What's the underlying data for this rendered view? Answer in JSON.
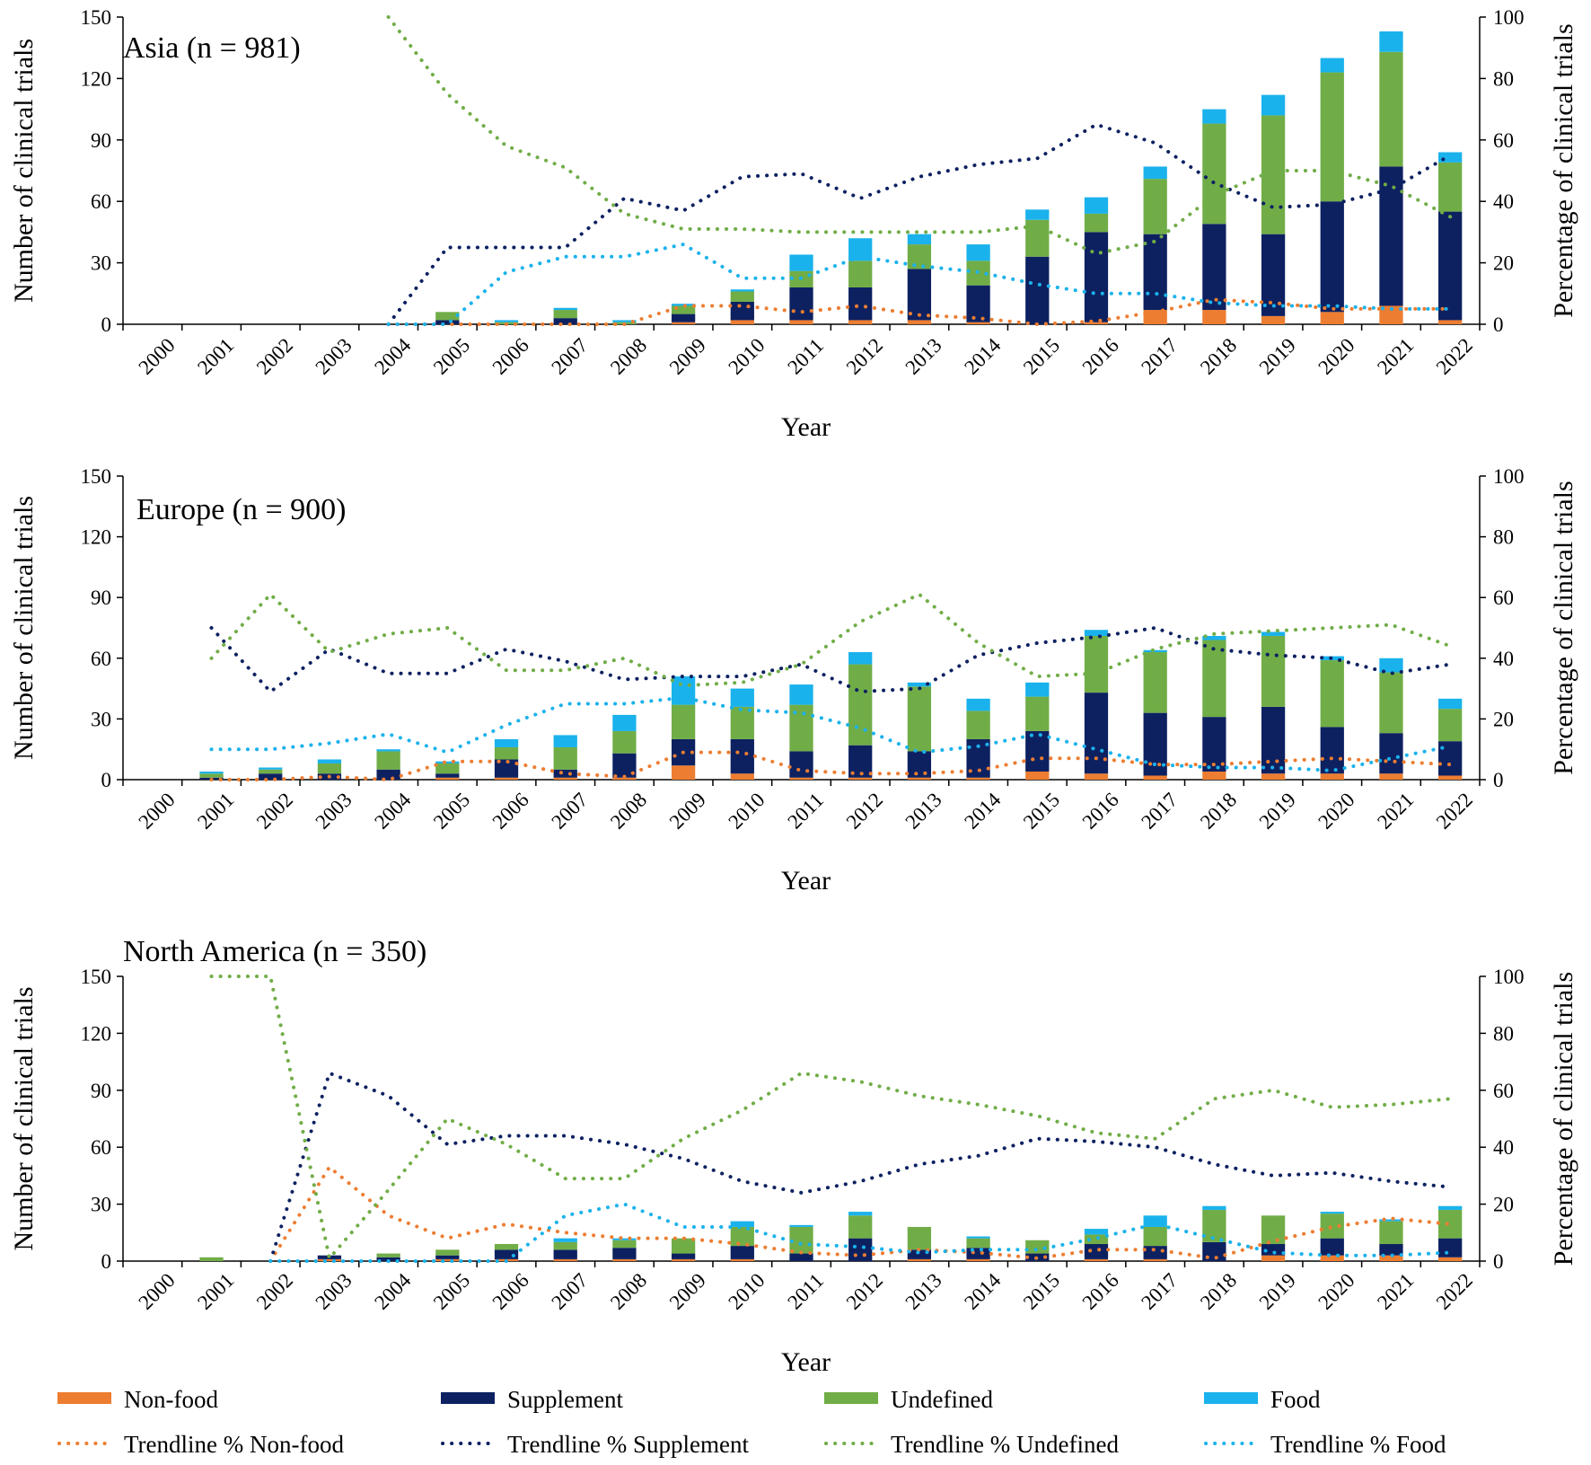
{
  "colors": {
    "non_food": "#ED7D31",
    "supplement": "#0D2161",
    "undefined": "#70AD47",
    "food": "#1AB2EC"
  },
  "legend": [
    {
      "key": "non_food",
      "label": "Non-food",
      "kind": "bar"
    },
    {
      "key": "supplement",
      "label": "Supplement",
      "kind": "bar"
    },
    {
      "key": "undefined",
      "label": "Undefined",
      "kind": "bar"
    },
    {
      "key": "food",
      "label": "Food",
      "kind": "bar"
    },
    {
      "key": "non_food",
      "label": "Trendline % Non-food",
      "kind": "line"
    },
    {
      "key": "supplement",
      "label": "Trendline % Supplement",
      "kind": "line"
    },
    {
      "key": "undefined",
      "label": "Trendline % Undefined",
      "kind": "line"
    },
    {
      "key": "food",
      "label": "Trendline % Food",
      "kind": "line"
    }
  ],
  "chart_data": [
    {
      "type": "bar",
      "stacked": true,
      "title": "Asia (n = 981)",
      "xlabel": "Year",
      "ylabel": "Number of clinical trials",
      "y2label": "Percentage of clinical trials",
      "ylim": [
        0,
        150
      ],
      "yticks": [
        "0",
        "30",
        "60",
        "90",
        "120",
        "150"
      ],
      "y2lim": [
        0,
        100
      ],
      "y2ticks": [
        "0",
        "20",
        "40",
        "60",
        "80",
        "100"
      ],
      "categories": [
        "2000",
        "2001",
        "2002",
        "2003",
        "2004",
        "2005",
        "2006",
        "2007",
        "2008",
        "2009",
        "2010",
        "2011",
        "2012",
        "2013",
        "2014",
        "2015",
        "2016",
        "2017",
        "2018",
        "2019",
        "2020",
        "2021",
        "2022"
      ],
      "series": [
        {
          "name": "Non-food",
          "key": "non_food",
          "values": [
            0,
            0,
            0,
            0,
            0,
            0,
            0,
            0,
            0,
            1,
            2,
            2,
            2,
            2,
            1,
            0,
            1,
            7,
            7,
            4,
            6,
            9,
            2
          ]
        },
        {
          "name": "Supplement",
          "key": "supplement",
          "values": [
            0,
            0,
            0,
            0,
            0,
            2,
            0,
            3,
            0,
            4,
            9,
            16,
            16,
            25,
            18,
            33,
            44,
            37,
            42,
            40,
            54,
            68,
            53
          ]
        },
        {
          "name": "Undefined",
          "key": "undefined",
          "values": [
            0,
            0,
            0,
            0,
            0,
            4,
            1,
            4,
            1,
            4,
            5,
            8,
            13,
            12,
            12,
            18,
            9,
            27,
            49,
            58,
            63,
            56,
            24
          ]
        },
        {
          "name": "Food",
          "key": "food",
          "values": [
            0,
            0,
            0,
            0,
            0,
            0,
            1,
            1,
            1,
            1,
            1,
            8,
            11,
            5,
            8,
            5,
            8,
            6,
            7,
            10,
            7,
            10,
            5
          ]
        }
      ],
      "trendlines": [
        {
          "name": "Trendline % Non-food",
          "key": "non_food",
          "values": [
            null,
            null,
            null,
            null,
            0,
            0,
            0,
            0,
            0,
            6,
            6,
            4,
            6,
            3,
            2,
            0,
            1,
            4,
            8,
            7,
            5,
            5,
            5
          ]
        },
        {
          "name": "Trendline % Supplement",
          "key": "supplement",
          "values": [
            null,
            null,
            null,
            null,
            0,
            25,
            25,
            25,
            41,
            37,
            48,
            49,
            41,
            48,
            52,
            54,
            65,
            59,
            46,
            38,
            39,
            44,
            55
          ]
        },
        {
          "name": "Trendline % Undefined",
          "key": "undefined",
          "values": [
            null,
            null,
            null,
            null,
            100,
            75,
            58,
            51,
            36,
            31,
            31,
            30,
            30,
            30,
            30,
            32,
            23,
            27,
            42,
            50,
            50,
            45,
            35
          ]
        },
        {
          "name": "Trendline % Food",
          "key": "food",
          "values": [
            null,
            null,
            null,
            null,
            0,
            0,
            17,
            22,
            22,
            26,
            15,
            15,
            22,
            19,
            17,
            13,
            10,
            10,
            7,
            6,
            6,
            5,
            5
          ]
        }
      ]
    },
    {
      "type": "bar",
      "stacked": true,
      "title": "Europe (n = 900)",
      "xlabel": "Year",
      "ylabel": "Number of clinical trials",
      "y2label": "Percentage of clinical trials",
      "ylim": [
        0,
        150
      ],
      "yticks": [
        "0",
        "30",
        "60",
        "90",
        "120",
        "150"
      ],
      "y2lim": [
        0,
        100
      ],
      "y2ticks": [
        "0",
        "20",
        "40",
        "60",
        "80",
        "100"
      ],
      "categories": [
        "2000",
        "2001",
        "2002",
        "2003",
        "2004",
        "2005",
        "2006",
        "2007",
        "2008",
        "2009",
        "2010",
        "2011",
        "2012",
        "2013",
        "2014",
        "2015",
        "2016",
        "2017",
        "2018",
        "2019",
        "2020",
        "2021",
        "2022"
      ],
      "series": [
        {
          "name": "Non-food",
          "key": "non_food",
          "values": [
            0,
            0,
            0,
            0,
            0,
            1,
            1,
            1,
            1,
            7,
            3,
            1,
            1,
            1,
            1,
            4,
            3,
            2,
            4,
            3,
            3,
            3,
            2
          ]
        },
        {
          "name": "Supplement",
          "key": "supplement",
          "values": [
            0,
            1,
            3,
            3,
            5,
            2,
            9,
            4,
            12,
            13,
            17,
            13,
            16,
            13,
            19,
            20,
            40,
            31,
            27,
            33,
            23,
            20,
            17
          ]
        },
        {
          "name": "Undefined",
          "key": "undefined",
          "values": [
            0,
            2,
            2,
            5,
            9,
            5,
            6,
            11,
            11,
            17,
            16,
            23,
            40,
            32,
            14,
            17,
            28,
            30,
            38,
            35,
            33,
            30,
            16
          ]
        },
        {
          "name": "Food",
          "key": "food",
          "values": [
            0,
            1,
            1,
            2,
            1,
            1,
            4,
            6,
            8,
            14,
            9,
            10,
            6,
            2,
            6,
            7,
            3,
            1,
            2,
            2,
            2,
            7,
            5
          ]
        }
      ],
      "trendlines": [
        {
          "name": "Trendline % Non-food",
          "key": "non_food",
          "values": [
            null,
            0,
            0,
            1,
            0,
            6,
            6,
            2,
            1,
            9,
            9,
            3,
            2,
            2,
            3,
            7,
            7,
            5,
            5,
            6,
            7,
            6,
            5
          ]
        },
        {
          "name": "Trendline % Supplement",
          "key": "supplement",
          "values": [
            null,
            50,
            29,
            43,
            35,
            35,
            43,
            39,
            33,
            34,
            34,
            38,
            29,
            30,
            41,
            45,
            47,
            50,
            43,
            41,
            40,
            35,
            38
          ]
        },
        {
          "name": "Trendline % Undefined",
          "key": "undefined",
          "values": [
            null,
            40,
            61,
            42,
            48,
            50,
            36,
            36,
            40,
            31,
            32,
            38,
            52,
            61,
            45,
            34,
            35,
            43,
            48,
            49,
            50,
            51,
            44
          ]
        },
        {
          "name": "Trendline % Food",
          "key": "food",
          "values": [
            null,
            10,
            10,
            12,
            15,
            9,
            18,
            25,
            25,
            27,
            23,
            22,
            17,
            9,
            11,
            15,
            10,
            5,
            4,
            4,
            3,
            7,
            11
          ]
        }
      ]
    },
    {
      "type": "bar",
      "stacked": true,
      "title": "North America (n = 350)",
      "xlabel": "Year",
      "ylabel": "Number of clinical trials",
      "y2label": "Percentage of clinical trials",
      "ylim": [
        0,
        150
      ],
      "yticks": [
        "0",
        "30",
        "60",
        "90",
        "120",
        "150"
      ],
      "y2lim": [
        0,
        100
      ],
      "y2ticks": [
        "0",
        "20",
        "40",
        "60",
        "80",
        "100"
      ],
      "categories": [
        "2000",
        "2001",
        "2002",
        "2003",
        "2004",
        "2005",
        "2006",
        "2007",
        "2008",
        "2009",
        "2010",
        "2011",
        "2012",
        "2013",
        "2014",
        "2015",
        "2016",
        "2017",
        "2018",
        "2019",
        "2020",
        "2021",
        "2022"
      ],
      "series": [
        {
          "name": "Non-food",
          "key": "non_food",
          "values": [
            0,
            0,
            0,
            1,
            0,
            1,
            1,
            1,
            1,
            1,
            1,
            0,
            0,
            1,
            1,
            0,
            1,
            1,
            0,
            3,
            3,
            3,
            2
          ]
        },
        {
          "name": "Supplement",
          "key": "supplement",
          "values": [
            0,
            0,
            0,
            2,
            2,
            2,
            5,
            5,
            6,
            3,
            7,
            4,
            12,
            5,
            6,
            4,
            8,
            7,
            10,
            6,
            9,
            6,
            10
          ]
        },
        {
          "name": "Undefined",
          "key": "undefined",
          "values": [
            0,
            2,
            0,
            0,
            2,
            3,
            3,
            4,
            4,
            8,
            10,
            14,
            12,
            12,
            5,
            7,
            5,
            10,
            17,
            15,
            13,
            12,
            15
          ]
        },
        {
          "name": "Food",
          "key": "food",
          "values": [
            0,
            0,
            0,
            0,
            0,
            0,
            0,
            2,
            1,
            0,
            3,
            1,
            2,
            0,
            1,
            0,
            3,
            6,
            2,
            0,
            1,
            1,
            2
          ]
        }
      ],
      "trendlines": [
        {
          "name": "Trendline % Non-food",
          "key": "non_food",
          "values": [
            null,
            null,
            0,
            33,
            16,
            8,
            13,
            10,
            8,
            8,
            6,
            3,
            2,
            4,
            3,
            1,
            4,
            4,
            1,
            7,
            12,
            15,
            13
          ]
        },
        {
          "name": "Trendline % Supplement",
          "key": "supplement",
          "values": [
            null,
            null,
            0,
            66,
            58,
            41,
            44,
            44,
            41,
            36,
            28,
            24,
            28,
            34,
            37,
            43,
            42,
            40,
            34,
            30,
            31,
            28,
            26
          ]
        },
        {
          "name": "Trendline % Undefined",
          "key": "undefined",
          "values": [
            null,
            100,
            100,
            1,
            25,
            50,
            41,
            29,
            29,
            43,
            53,
            66,
            63,
            58,
            55,
            51,
            45,
            43,
            57,
            60,
            54,
            55,
            57
          ]
        },
        {
          "name": "Trendline % Food",
          "key": "food",
          "values": [
            null,
            null,
            0,
            0,
            0,
            0,
            0,
            16,
            20,
            12,
            12,
            6,
            5,
            3,
            4,
            4,
            8,
            13,
            8,
            3,
            2,
            2,
            3
          ]
        }
      ]
    }
  ]
}
